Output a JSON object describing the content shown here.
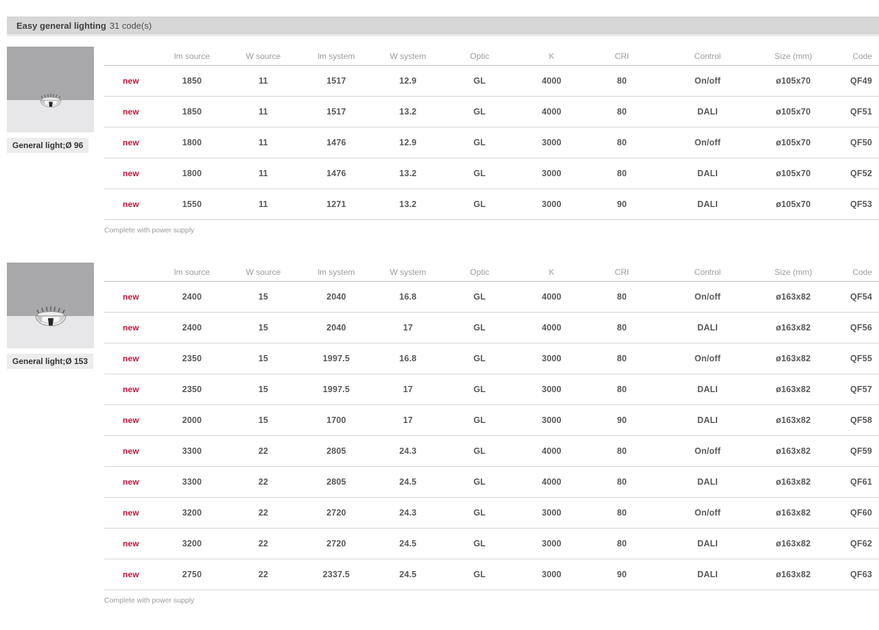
{
  "header": {
    "title": "Easy general lighting",
    "subtitle": "31 code(s)"
  },
  "new_label": "new",
  "columns": [
    "lm source",
    "W source",
    "lm system",
    "W system",
    "Optic",
    "K",
    "CRI",
    "Control",
    "Size (mm)",
    "Code"
  ],
  "column_keys": [
    "lm-source",
    "w-source",
    "lm-system",
    "w-system",
    "optic",
    "k",
    "cri",
    "control",
    "size-mm",
    "code"
  ],
  "sections": [
    {
      "product": {
        "caption": "General light;Ø 96",
        "image": "recessed-downlight-ceiling-photo"
      },
      "rows": [
        [
          "1850",
          "11",
          "1517",
          "12.9",
          "GL",
          "4000",
          "80",
          "On/off",
          "ø105x70",
          "QF49"
        ],
        [
          "1850",
          "11",
          "1517",
          "13.2",
          "GL",
          "4000",
          "80",
          "DALI",
          "ø105x70",
          "QF51"
        ],
        [
          "1800",
          "11",
          "1476",
          "12.9",
          "GL",
          "3000",
          "80",
          "On/off",
          "ø105x70",
          "QF50"
        ],
        [
          "1800",
          "11",
          "1476",
          "13.2",
          "GL",
          "3000",
          "80",
          "DALI",
          "ø105x70",
          "QF52"
        ],
        [
          "1550",
          "11",
          "1271",
          "13.2",
          "GL",
          "3000",
          "90",
          "DALI",
          "ø105x70",
          "QF53"
        ]
      ],
      "note": "Complete with power supply"
    },
    {
      "product": {
        "caption": "General light;Ø 153",
        "image": "recessed-downlight-ceiling-photo"
      },
      "rows": [
        [
          "2400",
          "15",
          "2040",
          "16.8",
          "GL",
          "4000",
          "80",
          "On/off",
          "ø163x82",
          "QF54"
        ],
        [
          "2400",
          "15",
          "2040",
          "17",
          "GL",
          "4000",
          "80",
          "DALI",
          "ø163x82",
          "QF56"
        ],
        [
          "2350",
          "15",
          "1997.5",
          "16.8",
          "GL",
          "3000",
          "80",
          "On/off",
          "ø163x82",
          "QF55"
        ],
        [
          "2350",
          "15",
          "1997.5",
          "17",
          "GL",
          "3000",
          "80",
          "DALI",
          "ø163x82",
          "QF57"
        ],
        [
          "2000",
          "15",
          "1700",
          "17",
          "GL",
          "3000",
          "90",
          "DALI",
          "ø163x82",
          "QF58"
        ],
        [
          "3300",
          "22",
          "2805",
          "24.3",
          "GL",
          "4000",
          "80",
          "On/off",
          "ø163x82",
          "QF59"
        ],
        [
          "3300",
          "22",
          "2805",
          "24.5",
          "GL",
          "4000",
          "80",
          "DALI",
          "ø163x82",
          "QF61"
        ],
        [
          "3200",
          "22",
          "2720",
          "24.3",
          "GL",
          "3000",
          "80",
          "On/off",
          "ø163x82",
          "QF60"
        ],
        [
          "3200",
          "22",
          "2720",
          "24.5",
          "GL",
          "3000",
          "80",
          "DALI",
          "ø163x82",
          "QF62"
        ],
        [
          "2750",
          "22",
          "2337.5",
          "24.5",
          "GL",
          "3000",
          "90",
          "DALI",
          "ø163x82",
          "QF63"
        ]
      ],
      "note": "Complete with power supply"
    }
  ],
  "colors": {
    "accent_red": "#c81238",
    "header_bar_bg": "#d7d7d7",
    "cell_text": "#58585a",
    "column_header_text": "#9c9c9c",
    "image_ceiling_gray": "#a8a8ab",
    "image_wall_gray": "#e7e7e9"
  }
}
